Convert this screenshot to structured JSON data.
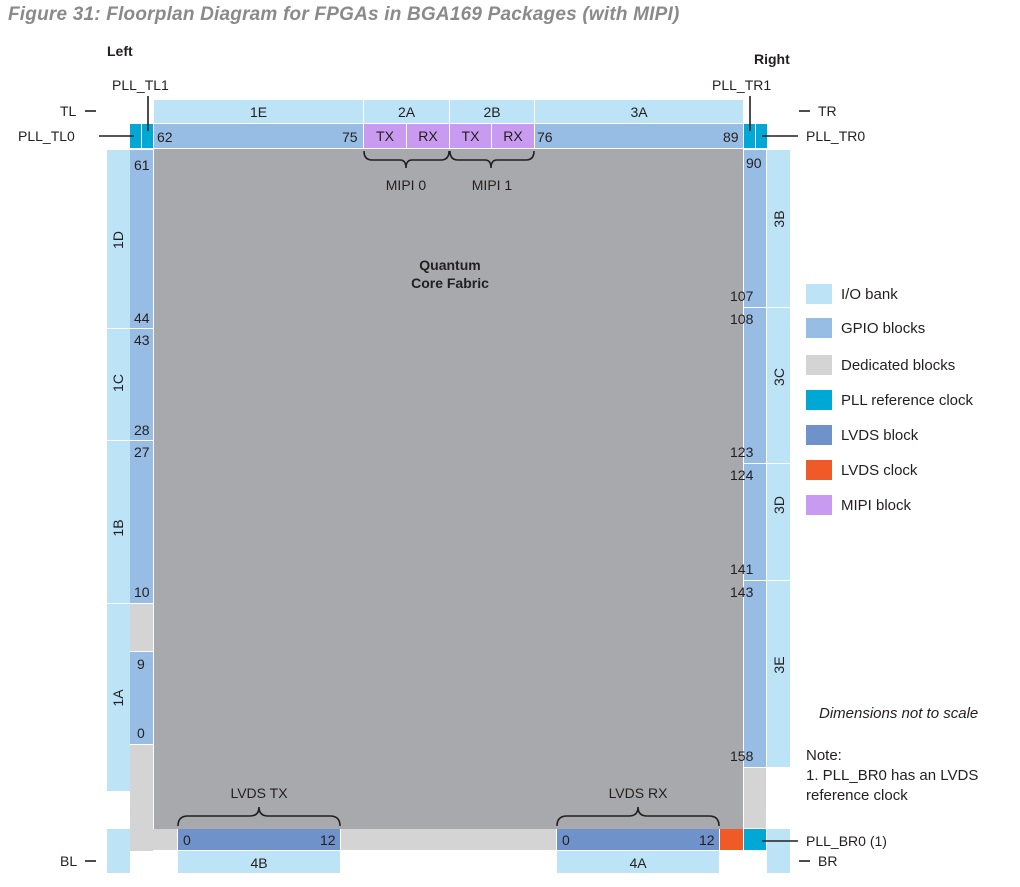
{
  "title": "Figure 31: Floorplan Diagram for FPGAs in BGA169 Packages (with MIPI)",
  "sides": {
    "left": "Left",
    "right": "Right"
  },
  "corners": {
    "tl": "TL",
    "tr": "TR",
    "bl": "BL",
    "br": "BR"
  },
  "pll": {
    "tl1": "PLL_TL1",
    "tl0": "PLL_TL0",
    "tr1": "PLL_TR1",
    "tr0": "PLL_TR0",
    "br0": "PLL_BR0 (1)"
  },
  "banks": {
    "top": [
      "1E",
      "2A",
      "2B",
      "3A"
    ],
    "left": [
      "1D",
      "1C",
      "1B",
      "1A"
    ],
    "right": [
      "3B",
      "3C",
      "3D",
      "3E"
    ],
    "bottom": [
      "4B",
      "4A"
    ]
  },
  "mipi": {
    "tx": "TX",
    "rx": "RX",
    "mipi0": "MIPI 0",
    "mipi1": "MIPI 1"
  },
  "core": {
    "line1": "Quantum",
    "line2": "Core Fabric"
  },
  "gpio_numbers": {
    "top": [
      "62",
      "75",
      "76",
      "89"
    ],
    "left": [
      "61",
      "44",
      "43",
      "28",
      "27",
      "10",
      "9",
      "0"
    ],
    "right": [
      "90",
      "107",
      "108",
      "123",
      "124",
      "141",
      "143",
      "158"
    ],
    "bottom": [
      "0",
      "12",
      "0",
      "12"
    ]
  },
  "lvds": {
    "tx": "LVDS TX",
    "rx": "LVDS RX"
  },
  "legend": [
    {
      "label": "I/O bank",
      "color": "#bde3f7"
    },
    {
      "label": "GPIO blocks",
      "color": "#98bde4"
    },
    {
      "label": "Dedicated blocks",
      "color": "#d4d4d4"
    },
    {
      "label": "PLL reference clock",
      "color": "#00a9d5"
    },
    {
      "label": "LVDS block",
      "color": "#6f92cb"
    },
    {
      "label": "LVDS clock",
      "color": "#f05a28"
    },
    {
      "label": "MIPI block",
      "color": "#c99bf0"
    }
  ],
  "notes": {
    "scale": "Dimensions not to scale",
    "note_heading": "Note:",
    "note_line1": "1. PLL_BR0 has an LVDS",
    "note_line2": "reference clock"
  }
}
